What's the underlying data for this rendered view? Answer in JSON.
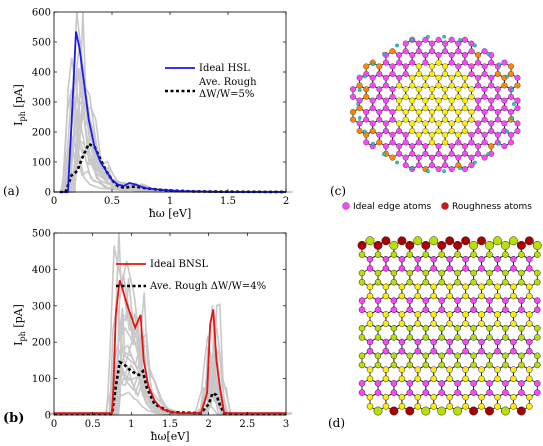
{
  "panels": {
    "a": "(a)",
    "b": "(b)",
    "c": "(c)",
    "d": "(d)"
  },
  "atom_legend": {
    "ideal": "Ideal edge atoms",
    "rough": "Roughness atoms",
    "ideal_color": "#ff44ff",
    "rough_color": "#dd1111"
  },
  "chart_data": [
    {
      "type": "line",
      "panel": "a",
      "xlabel": "ħω [eV]",
      "ylabel_main": "I",
      "ylabel_sub": "ph",
      "ylabel_unit": " [pA]",
      "xlim": [
        0,
        2
      ],
      "ylim": [
        0,
        600
      ],
      "xticks": [
        "0",
        "0.5",
        "1",
        "1.5",
        "2"
      ],
      "yticks": [
        "0",
        "100",
        "200",
        "300",
        "400",
        "500",
        "600"
      ],
      "grid": false,
      "legend_position": "top-right",
      "series": [
        {
          "name": "Ideal HSL",
          "color": "#1a1aee",
          "style": "solid",
          "x": [
            0.05,
            0.12,
            0.16,
            0.19,
            0.22,
            0.26,
            0.3,
            0.35,
            0.4,
            0.45,
            0.5,
            0.55,
            0.6,
            0.65,
            0.7,
            0.75,
            0.8,
            0.9,
            1.0,
            1.1,
            1.2,
            1.3,
            1.5,
            2.0
          ],
          "y": [
            0,
            0,
            300,
            535,
            480,
            360,
            240,
            150,
            100,
            70,
            40,
            25,
            20,
            30,
            25,
            18,
            12,
            8,
            5,
            3,
            2,
            1,
            0,
            0
          ]
        },
        {
          "name": "Ave. Rough ΔW/W=5%",
          "name_line1": "Ave. Rough",
          "name_line2": "ΔW/W=5%",
          "color": "#000000",
          "style": "dashed",
          "x": [
            0.05,
            0.1,
            0.15,
            0.2,
            0.25,
            0.3,
            0.35,
            0.4,
            0.45,
            0.5,
            0.55,
            0.6,
            0.7,
            0.8,
            0.9,
            1.0,
            1.2,
            1.5,
            2.0
          ],
          "y": [
            0,
            0,
            55,
            70,
            120,
            160,
            150,
            110,
            70,
            40,
            20,
            15,
            18,
            12,
            8,
            5,
            2,
            1,
            0
          ]
        }
      ]
    },
    {
      "type": "line",
      "panel": "b",
      "xlabel": "ħω[eV]",
      "ylabel_main": "I",
      "ylabel_sub": "ph",
      "ylabel_unit": " [pA]",
      "xlim": [
        0,
        3
      ],
      "ylim": [
        0,
        500
      ],
      "xticks": [
        "0",
        "0.5",
        "1",
        "1.5",
        "2",
        "2.5",
        "3"
      ],
      "yticks": [
        "0",
        "100",
        "200",
        "300",
        "400",
        "500"
      ],
      "grid": false,
      "legend_position": "top-right",
      "series": [
        {
          "name": "Ideal BNSL",
          "color": "#ee1111",
          "style": "solid",
          "x": [
            0,
            0.75,
            0.77,
            0.8,
            0.85,
            0.88,
            0.95,
            1.05,
            1.12,
            1.16,
            1.22,
            1.3,
            1.4,
            1.6,
            1.9,
            1.98,
            2.02,
            2.06,
            2.1,
            2.15,
            2.2,
            2.4,
            3.0
          ],
          "y": [
            5,
            5,
            80,
            280,
            370,
            350,
            300,
            240,
            275,
            150,
            80,
            40,
            15,
            5,
            5,
            60,
            250,
            290,
            150,
            70,
            5,
            5,
            5
          ]
        },
        {
          "name": "Ave. Rough ΔW/W=4%",
          "color": "#000000",
          "style": "dashed",
          "x": [
            0,
            0.75,
            0.8,
            0.85,
            0.9,
            1.0,
            1.1,
            1.15,
            1.2,
            1.3,
            1.5,
            1.9,
            2.0,
            2.05,
            2.1,
            2.15,
            2.2,
            2.4,
            3.0
          ],
          "y": [
            3,
            3,
            80,
            145,
            140,
            120,
            110,
            120,
            75,
            30,
            8,
            5,
            30,
            60,
            55,
            25,
            5,
            3,
            3
          ]
        }
      ]
    }
  ],
  "lattices": {
    "c": {
      "colors": [
        "#ffee00",
        "#ff44ff",
        "#ff8800",
        "#22cccc"
      ]
    },
    "d": {
      "colors": [
        "#ffee00",
        "#ff44ff",
        "#b8e000",
        "#aa0000"
      ]
    }
  }
}
